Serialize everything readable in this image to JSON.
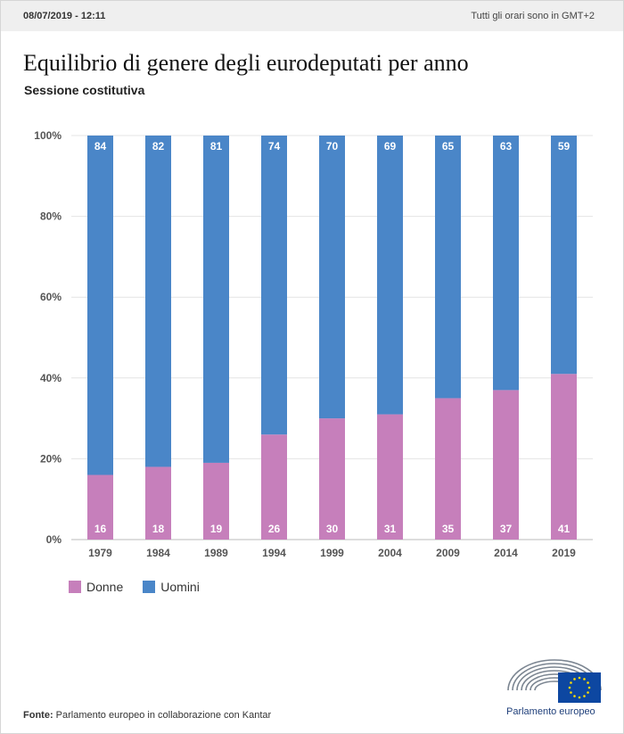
{
  "header": {
    "datetime": "08/07/2019 - 12:11",
    "timezone": "Tutti gli orari sono in GMT+2"
  },
  "chart_data": {
    "type": "bar",
    "stacked": true,
    "title": "Equilibrio di genere degli eurodeputati per anno",
    "subtitle": "Sessione costitutiva",
    "categories": [
      "1979",
      "1984",
      "1989",
      "1994",
      "1999",
      "2004",
      "2009",
      "2014",
      "2019"
    ],
    "series": [
      {
        "name": "Donne",
        "color": "#c67fbb",
        "values": [
          16,
          18,
          19,
          26,
          30,
          31,
          35,
          37,
          41
        ]
      },
      {
        "name": "Uomini",
        "color": "#4a86c8",
        "values": [
          84,
          82,
          81,
          74,
          70,
          69,
          65,
          63,
          59
        ]
      }
    ],
    "y_ticks": [
      "0%",
      "20%",
      "40%",
      "60%",
      "80%",
      "100%"
    ],
    "ylim": [
      0,
      100
    ],
    "grid": true,
    "legend_position": "bottom-left",
    "data_labels": true
  },
  "footer": {
    "source_label": "Fonte:",
    "source_text": "Parlamento europeo in collaborazione con Kantar",
    "logo_text": "Parlamento europeo"
  }
}
